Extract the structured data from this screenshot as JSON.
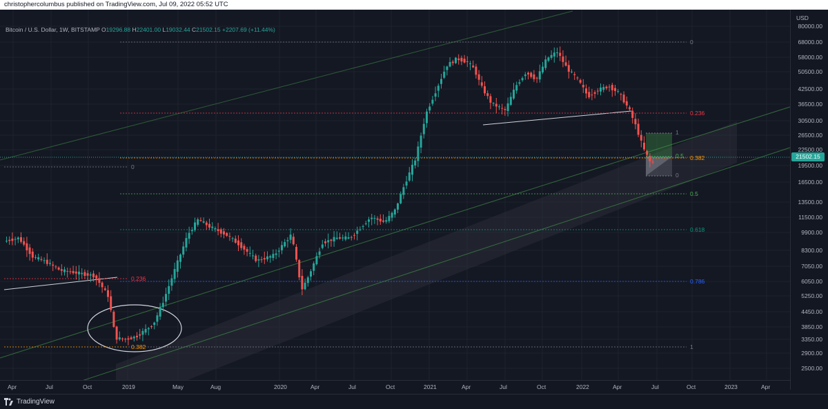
{
  "header": {
    "publisher_line": "christophercolumbus published on TradingView.com, Jul 09, 2022 05:52 UTC"
  },
  "legend": {
    "symbol": "Bitcoin / U.S. Dollar, 1W, BITSTAMP",
    "open_label": "O",
    "open": "19296.88",
    "high_label": "H",
    "high": "22401.00",
    "low_label": "L",
    "low": "19032.44",
    "close_label": "C",
    "close": "21502.15",
    "change": "+2207.69 (+11.44%)"
  },
  "price_axis": {
    "currency": "USD",
    "ticks": [
      "80000.00",
      "68000.00",
      "58000.00",
      "50500.00",
      "42500.00",
      "36500.00",
      "30500.00",
      "26500.00",
      "22500.00",
      "19500.00",
      "16500.00",
      "13500.00",
      "11500.00",
      "9900.00",
      "8300.00",
      "7050.00",
      "6050.00",
      "5250.00",
      "4450.00",
      "3850.00",
      "3350.00",
      "2900.00",
      "2500.00"
    ],
    "current_price": "21502.15"
  },
  "time_axis": {
    "ticks": [
      "Apr",
      "Jul",
      "Oct",
      "2019",
      "May",
      "Aug",
      "2020",
      "Apr",
      "Jul",
      "Oct",
      "2021",
      "Apr",
      "Jul",
      "Oct",
      "2022",
      "Apr",
      "Jul",
      "Oct",
      "2023",
      "Apr"
    ]
  },
  "fib_major": {
    "levels": [
      "0",
      "0.236",
      "0.382",
      "0.5",
      "0.618",
      "0.786",
      "1"
    ],
    "colors": [
      "#787b86",
      "#f23645",
      "#ff9800",
      "#4caf50",
      "#089981",
      "#2962ff",
      "#787b86"
    ]
  },
  "fib_left": {
    "levels": [
      "0",
      "0.236",
      "0.382"
    ]
  },
  "fib_small": {
    "levels": [
      "1",
      "0.5",
      "0"
    ]
  },
  "footer": {
    "brand": "TradingView"
  },
  "colors": {
    "up": "#26a69a",
    "down": "#ef5350",
    "background": "#131722",
    "channel": "#2a2e39"
  }
}
